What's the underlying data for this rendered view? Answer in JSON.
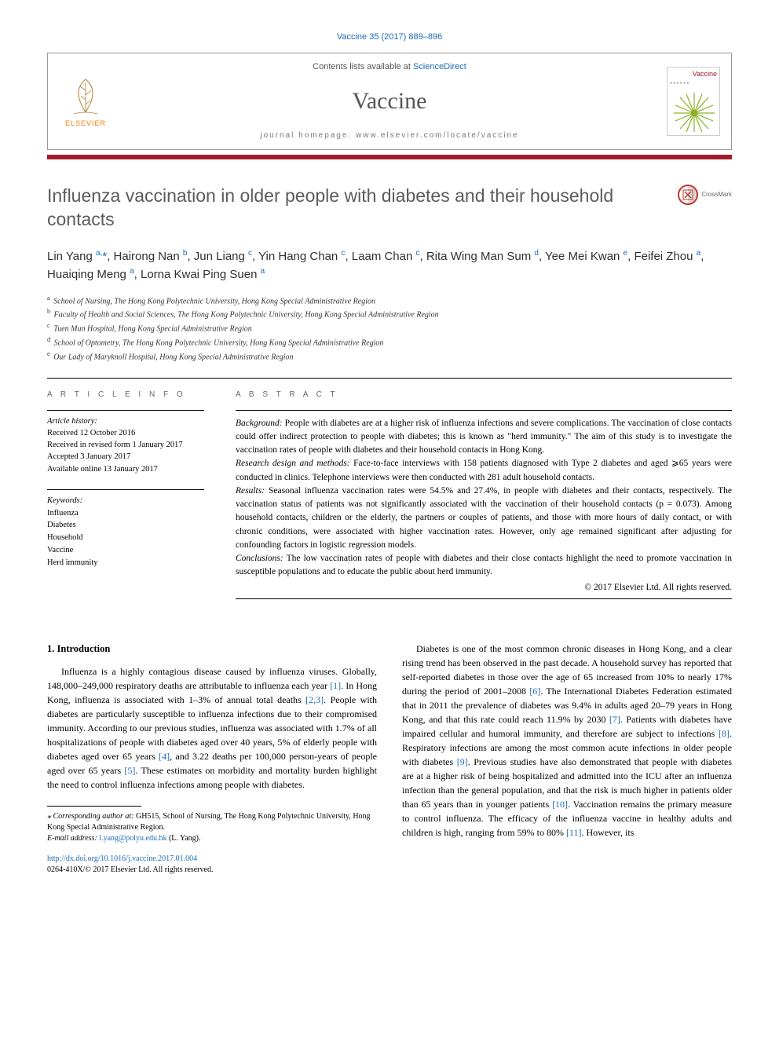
{
  "citation": {
    "prefix": "Vaccine 35 (2017) 889–896",
    "link": "Vaccine 35 (2017) 889–896"
  },
  "header": {
    "contents_line_prefix": "Contents lists available at ",
    "contents_line_link": "ScienceDirect",
    "journal_name": "Vaccine",
    "homepage_prefix": "journal homepage: ",
    "homepage_url": "www.elsevier.com/locate/vaccine",
    "publisher_logo_text": "ELSEVIER",
    "cover_brand": "Vaccine"
  },
  "title": "Influenza vaccination in older people with diabetes and their household contacts",
  "crossmark_label": "CrossMark",
  "authors_html": "Lin Yang <sup>a,</sup><span class='star'>*</span>, Hairong Nan <sup>b</sup>, Jun Liang <sup>c</sup>, Yin Hang Chan <sup>c</sup>, Laam Chan <sup>c</sup>, Rita Wing Man Sum <sup>d</sup>, Yee Mei Kwan <sup>e</sup>, Feifei Zhou <sup>a</sup>, Huaiqing Meng <sup>a</sup>, Lorna Kwai Ping Suen <sup>a</sup>",
  "affiliations": [
    {
      "sup": "a",
      "text": "School of Nursing, The Hong Kong Polytechnic University, Hong Kong Special Administrative Region"
    },
    {
      "sup": "b",
      "text": "Faculty of Health and Social Sciences, The Hong Kong Polytechnic University, Hong Kong Special Administrative Region"
    },
    {
      "sup": "c",
      "text": "Tuen Mun Hospital, Hong Kong Special Administrative Region"
    },
    {
      "sup": "d",
      "text": "School of Optometry, The Hong Kong Polytechnic University, Hong Kong Special Administrative Region"
    },
    {
      "sup": "e",
      "text": "Our Lady of Maryknoll Hospital, Hong Kong Special Administrative Region"
    }
  ],
  "info": {
    "label": "A R T I C L E   I N F O",
    "history_label": "Article history:",
    "history": [
      "Received 12 October 2016",
      "Received in revised form 1 January 2017",
      "Accepted 3 January 2017",
      "Available online 13 January 2017"
    ],
    "keywords_label": "Keywords:",
    "keywords": [
      "Influenza",
      "Diabetes",
      "Household",
      "Vaccine",
      "Herd immunity"
    ]
  },
  "abstract": {
    "label": "A B S T R A C T",
    "sections": [
      {
        "heading": "Background:",
        "text": "People with diabetes are at a higher risk of influenza infections and severe complications. The vaccination of close contacts could offer indirect protection to people with diabetes; this is known as \"herd immunity.\" The aim of this study is to investigate the vaccination rates of people with diabetes and their household contacts in Hong Kong."
      },
      {
        "heading": "Research design and methods:",
        "text": "Face-to-face interviews with 158 patients diagnosed with Type 2 diabetes and aged ⩾65 years were conducted in clinics. Telephone interviews were then conducted with 281 adult household contacts."
      },
      {
        "heading": "Results:",
        "text": "Seasonal influenza vaccination rates were 54.5% and 27.4%, in people with diabetes and their contacts, respectively. The vaccination status of patients was not significantly associated with the vaccination of their household contacts (p = 0.073). Among household contacts, children or the elderly, the partners or couples of patients, and those with more hours of daily contact, or with chronic conditions, were associated with higher vaccination rates. However, only age remained significant after adjusting for confounding factors in logistic regression models."
      },
      {
        "heading": "Conclusions:",
        "text": "The low vaccination rates of people with diabetes and their close contacts highlight the need to promote vaccination in susceptible populations and to educate the public about herd immunity."
      }
    ],
    "copyright": "© 2017 Elsevier Ltd. All rights reserved."
  },
  "body": {
    "section_heading": "1. Introduction",
    "col1_p1": "Influenza is a highly contagious disease caused by influenza viruses. Globally, 148,000–249,000 respiratory deaths are attributable to influenza each year [1]. In Hong Kong, influenza is associated with 1–3% of annual total deaths [2,3]. People with diabetes are particularly susceptible to influenza infections due to their compromised immunity. According to our previous studies, influenza was associated with 1.7% of all hospitalizations of people with diabetes aged over 40 years, 5% of elderly people with diabetes aged over 65 years [4], and 3.22 deaths per 100,000 person-years of people aged over 65 years [5]. These estimates on morbidity and mortality burden highlight the need to control influenza infections among people with diabetes.",
    "col2_p1": "Diabetes is one of the most common chronic diseases in Hong Kong, and a clear rising trend has been observed in the past decade. A household survey has reported that self-reported diabetes in those over the age of 65 increased from 10% to nearly 17% during the period of 2001–2008 [6]. The International Diabetes Federation estimated that in 2011 the prevalence of diabetes was 9.4% in adults aged 20–79 years in Hong Kong, and that this rate could reach 11.9% by 2030 [7]. Patients with diabetes have impaired cellular and humoral immunity, and therefore are subject to infections [8]. Respiratory infections are among the most common acute infections in older people with diabetes [9]. Previous studies have also demonstrated that people with diabetes are at a higher risk of being hospitalized and admitted into the ICU after an influenza infection than the general population, and that the risk is much higher in patients older than 65 years than in younger patients [10]. Vaccination remains the primary measure to control influenza. The efficacy of the influenza vaccine in healthy adults and children is high, ranging from 59% to 80% [11]. However, its"
  },
  "footnotes": {
    "corresp_label": "⁎ Corresponding author at:",
    "corresp_text": " GH515, School of Nursing, The Hong Kong Polytechnic University, Hong Kong Special Administrative Region.",
    "email_label": "E-mail address: ",
    "email": "l.yang@polyu.edu.hk",
    "email_suffix": " (L. Yang).",
    "doi_url": "http://dx.doi.org/10.1016/j.vaccine.2017.01.004",
    "issn_line": "0264-410X/© 2017 Elsevier Ltd. All rights reserved."
  },
  "refs": {
    "r1": "[1]",
    "r23": "[2,3]",
    "r4": "[4]",
    "r5": "[5]",
    "r6": "[6]",
    "r7": "[7]",
    "r8": "[8]",
    "r9": "[9]",
    "r10": "[10]",
    "r11": "[11]"
  },
  "colors": {
    "link": "#1a6bb8",
    "redbar": "#a31c2d",
    "title": "#5b5b5b",
    "publisher": "#ff7a00"
  }
}
